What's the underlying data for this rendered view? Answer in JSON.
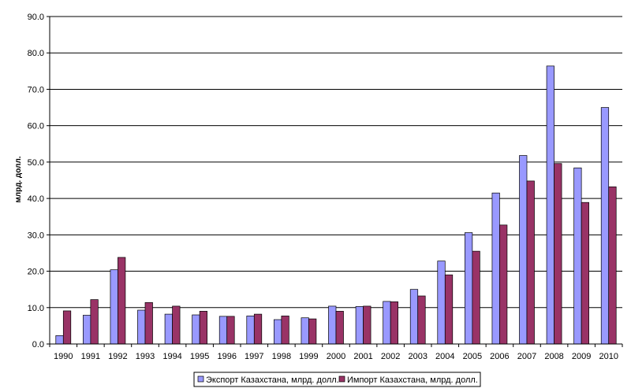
{
  "chart_data": {
    "type": "bar",
    "title": "",
    "xlabel": "",
    "ylabel": "млрд. долл.",
    "ylim": [
      0,
      90
    ],
    "yticks": [
      "0.0",
      "10.0",
      "20.0",
      "30.0",
      "40.0",
      "50.0",
      "60.0",
      "70.0",
      "80.0",
      "90.0"
    ],
    "grid": true,
    "legend_position": "bottom",
    "categories": [
      "1990",
      "1991",
      "1992",
      "1993",
      "1994",
      "1995",
      "1996",
      "1997",
      "1998",
      "1999",
      "2000",
      "2001",
      "2002",
      "2003",
      "2004",
      "2005",
      "2006",
      "2007",
      "2008",
      "2009",
      "2010"
    ],
    "series": [
      {
        "name": "Экспорт Казахстана, млрд. долл.",
        "color": "#9999ff",
        "values": [
          2.3,
          7.9,
          20.4,
          9.3,
          8.2,
          8.0,
          7.6,
          7.7,
          6.7,
          7.2,
          10.4,
          10.3,
          11.7,
          15.0,
          22.8,
          30.6,
          41.5,
          51.8,
          76.4,
          48.4,
          65.0
        ]
      },
      {
        "name": "Импорт Казахстана, млрд. долл.",
        "color": "#993366",
        "values": [
          9.1,
          12.2,
          23.8,
          11.4,
          10.4,
          9.0,
          7.6,
          8.2,
          7.7,
          6.9,
          9.0,
          10.4,
          11.6,
          13.2,
          19.0,
          25.5,
          32.7,
          44.8,
          49.6,
          38.9,
          43.2
        ]
      }
    ]
  }
}
